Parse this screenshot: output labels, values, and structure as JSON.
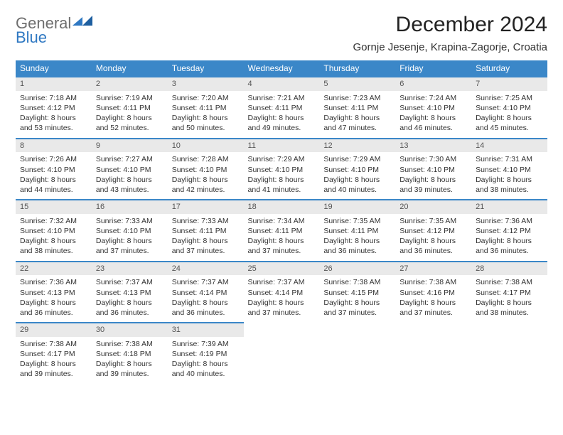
{
  "brand": {
    "line1": "General",
    "line2": "Blue",
    "logo_color": "#2f78c2",
    "text_gray": "#6e6e6e"
  },
  "title": "December 2024",
  "location": "Gornje Jesenje, Krapina-Zagorje, Croatia",
  "header_bg": "#3b87c8",
  "daynum_bg": "#e9e9e9",
  "border_color": "#3b87c8",
  "day_headers": [
    "Sunday",
    "Monday",
    "Tuesday",
    "Wednesday",
    "Thursday",
    "Friday",
    "Saturday"
  ],
  "weeks": [
    [
      {
        "n": "1",
        "sr": "7:18 AM",
        "ss": "4:12 PM",
        "dl": "8 hours and 53 minutes."
      },
      {
        "n": "2",
        "sr": "7:19 AM",
        "ss": "4:11 PM",
        "dl": "8 hours and 52 minutes."
      },
      {
        "n": "3",
        "sr": "7:20 AM",
        "ss": "4:11 PM",
        "dl": "8 hours and 50 minutes."
      },
      {
        "n": "4",
        "sr": "7:21 AM",
        "ss": "4:11 PM",
        "dl": "8 hours and 49 minutes."
      },
      {
        "n": "5",
        "sr": "7:23 AM",
        "ss": "4:11 PM",
        "dl": "8 hours and 47 minutes."
      },
      {
        "n": "6",
        "sr": "7:24 AM",
        "ss": "4:10 PM",
        "dl": "8 hours and 46 minutes."
      },
      {
        "n": "7",
        "sr": "7:25 AM",
        "ss": "4:10 PM",
        "dl": "8 hours and 45 minutes."
      }
    ],
    [
      {
        "n": "8",
        "sr": "7:26 AM",
        "ss": "4:10 PM",
        "dl": "8 hours and 44 minutes."
      },
      {
        "n": "9",
        "sr": "7:27 AM",
        "ss": "4:10 PM",
        "dl": "8 hours and 43 minutes."
      },
      {
        "n": "10",
        "sr": "7:28 AM",
        "ss": "4:10 PM",
        "dl": "8 hours and 42 minutes."
      },
      {
        "n": "11",
        "sr": "7:29 AM",
        "ss": "4:10 PM",
        "dl": "8 hours and 41 minutes."
      },
      {
        "n": "12",
        "sr": "7:29 AM",
        "ss": "4:10 PM",
        "dl": "8 hours and 40 minutes."
      },
      {
        "n": "13",
        "sr": "7:30 AM",
        "ss": "4:10 PM",
        "dl": "8 hours and 39 minutes."
      },
      {
        "n": "14",
        "sr": "7:31 AM",
        "ss": "4:10 PM",
        "dl": "8 hours and 38 minutes."
      }
    ],
    [
      {
        "n": "15",
        "sr": "7:32 AM",
        "ss": "4:10 PM",
        "dl": "8 hours and 38 minutes."
      },
      {
        "n": "16",
        "sr": "7:33 AM",
        "ss": "4:10 PM",
        "dl": "8 hours and 37 minutes."
      },
      {
        "n": "17",
        "sr": "7:33 AM",
        "ss": "4:11 PM",
        "dl": "8 hours and 37 minutes."
      },
      {
        "n": "18",
        "sr": "7:34 AM",
        "ss": "4:11 PM",
        "dl": "8 hours and 37 minutes."
      },
      {
        "n": "19",
        "sr": "7:35 AM",
        "ss": "4:11 PM",
        "dl": "8 hours and 36 minutes."
      },
      {
        "n": "20",
        "sr": "7:35 AM",
        "ss": "4:12 PM",
        "dl": "8 hours and 36 minutes."
      },
      {
        "n": "21",
        "sr": "7:36 AM",
        "ss": "4:12 PM",
        "dl": "8 hours and 36 minutes."
      }
    ],
    [
      {
        "n": "22",
        "sr": "7:36 AM",
        "ss": "4:13 PM",
        "dl": "8 hours and 36 minutes."
      },
      {
        "n": "23",
        "sr": "7:37 AM",
        "ss": "4:13 PM",
        "dl": "8 hours and 36 minutes."
      },
      {
        "n": "24",
        "sr": "7:37 AM",
        "ss": "4:14 PM",
        "dl": "8 hours and 36 minutes."
      },
      {
        "n": "25",
        "sr": "7:37 AM",
        "ss": "4:14 PM",
        "dl": "8 hours and 37 minutes."
      },
      {
        "n": "26",
        "sr": "7:38 AM",
        "ss": "4:15 PM",
        "dl": "8 hours and 37 minutes."
      },
      {
        "n": "27",
        "sr": "7:38 AM",
        "ss": "4:16 PM",
        "dl": "8 hours and 37 minutes."
      },
      {
        "n": "28",
        "sr": "7:38 AM",
        "ss": "4:17 PM",
        "dl": "8 hours and 38 minutes."
      }
    ],
    [
      {
        "n": "29",
        "sr": "7:38 AM",
        "ss": "4:17 PM",
        "dl": "8 hours and 39 minutes."
      },
      {
        "n": "30",
        "sr": "7:38 AM",
        "ss": "4:18 PM",
        "dl": "8 hours and 39 minutes."
      },
      {
        "n": "31",
        "sr": "7:39 AM",
        "ss": "4:19 PM",
        "dl": "8 hours and 40 minutes."
      },
      null,
      null,
      null,
      null
    ]
  ],
  "labels": {
    "sunrise": "Sunrise:",
    "sunset": "Sunset:",
    "daylight": "Daylight:"
  }
}
